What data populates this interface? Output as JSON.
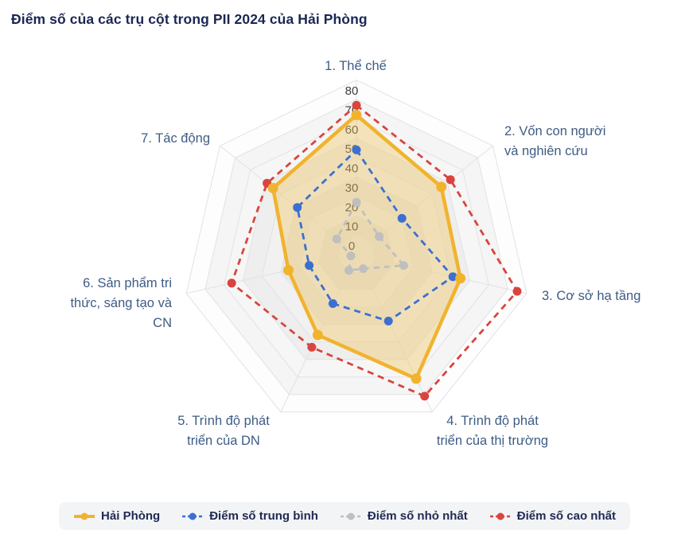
{
  "title": "Điểm số của các trụ cột trong PII 2024 của Hải Phòng",
  "colors": {
    "title_text": "#1b2753",
    "axis_label_text": "#3e5c85",
    "tick_text": "#3f3f3f",
    "grid_line": "#e2e2e6",
    "legend_background": "#f3f4f6",
    "hai_phong": "#f1b32e",
    "hai_phong_fill": "rgba(241,196,90,0.38)",
    "trung_binh": "#3d6fd1",
    "nho_nhat": "#bfbfbf",
    "cao_nhat": "#d8453e"
  },
  "chart_data": {
    "type": "radar",
    "title": "Điểm số của các trụ cột trong PII 2024 của Hải Phòng",
    "legend_position": "bottom",
    "grid": "on",
    "axis": {
      "min": 0,
      "max": 90,
      "tick_interval": 10,
      "tick_labels": [
        0,
        10,
        20,
        30,
        40,
        50,
        60,
        70,
        80
      ]
    },
    "categories": [
      {
        "label": "1. Thể chế",
        "lines": [
          "1. Thể chế"
        ]
      },
      {
        "label": "2. Vốn con người và nghiên cứu",
        "lines": [
          "2. Vốn con người",
          "và nghiên cứu"
        ]
      },
      {
        "label": "3. Cơ sở hạ tầng",
        "lines": [
          "3. Cơ sở hạ tầng"
        ]
      },
      {
        "label": "4. Trình độ phát triển của thị trường",
        "lines": [
          "4. Trình độ phát",
          "triển của thị trường"
        ]
      },
      {
        "label": "5. Trình độ phát triển của DN",
        "lines": [
          "5. Trình độ phát",
          "triển của DN"
        ]
      },
      {
        "label": "6. Sản phẩm tri thức, sáng tạo và CN",
        "lines": [
          "6. Sản phẩm tri",
          "thức, sáng tạo và",
          "CN"
        ]
      },
      {
        "label": "7. Tác động",
        "lines": [
          "7. Tác động"
        ]
      }
    ],
    "series": [
      {
        "name": "Hải Phòng",
        "color": "#f1b32e",
        "style": "solid",
        "filled": true,
        "values": [
          72,
          56,
          55,
          71,
          46,
          36,
          55
        ]
      },
      {
        "name": "Điểm số trung bình",
        "color": "#3d6fd1",
        "style": "dashed",
        "filled": false,
        "values": [
          54,
          30,
          51,
          38,
          28,
          25,
          39
        ]
      },
      {
        "name": "Điểm số nhỏ nhất",
        "color": "#bfbfbf",
        "style": "dashed",
        "filled": false,
        "values": [
          27,
          15,
          25,
          8,
          9,
          3,
          13
        ]
      },
      {
        "name": "Điểm số cao nhất",
        "color": "#d8453e",
        "style": "dashed",
        "filled": false,
        "values": [
          77,
          62,
          85,
          81,
          53,
          66,
          59
        ]
      }
    ]
  }
}
